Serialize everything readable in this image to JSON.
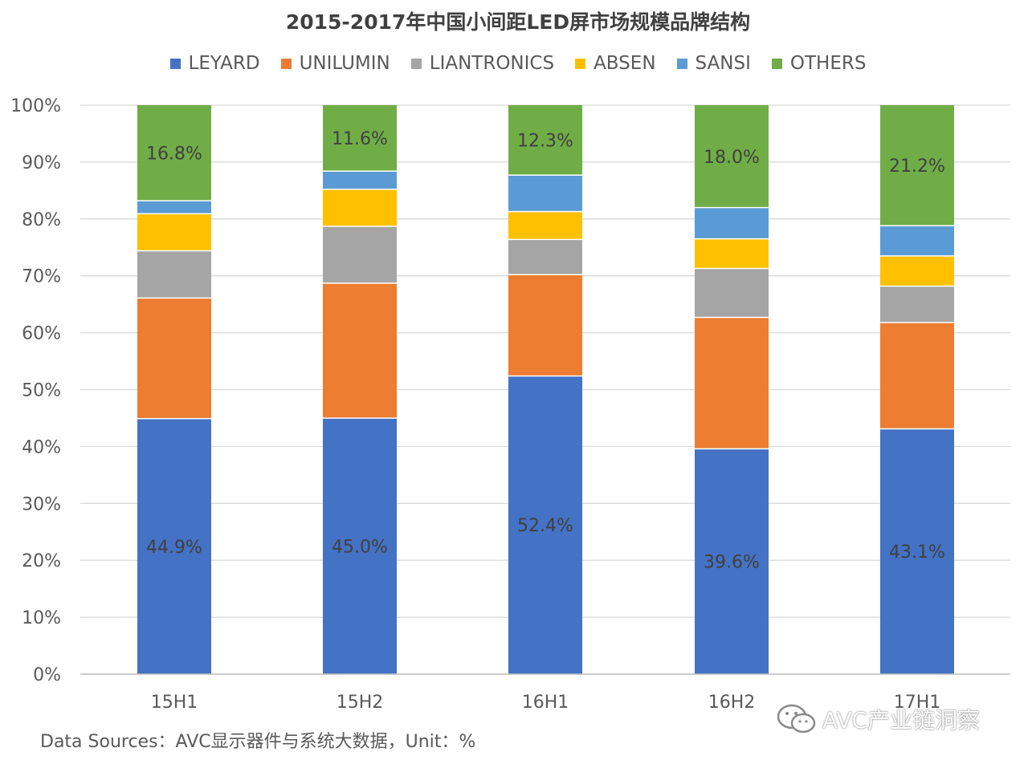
{
  "chart_data": {
    "type": "bar",
    "stacked": true,
    "title": "2015-2017年中国小间距LED屏市场规模品牌结构",
    "categories": [
      "15H1",
      "15H2",
      "16H1",
      "16H2",
      "17H1"
    ],
    "series": [
      {
        "name": "LEYARD",
        "color": "#4472C4",
        "values": [
          44.9,
          45.0,
          52.4,
          39.6,
          43.1
        ]
      },
      {
        "name": "UNILUMIN",
        "color": "#ED7D31",
        "values": [
          21.2,
          23.7,
          17.8,
          23.1,
          18.7
        ]
      },
      {
        "name": "LIANTRONICS",
        "color": "#A5A5A5",
        "values": [
          8.3,
          10.0,
          6.2,
          8.6,
          6.4
        ]
      },
      {
        "name": "ABSEN",
        "color": "#FFC000",
        "values": [
          6.5,
          6.5,
          4.9,
          5.2,
          5.3
        ]
      },
      {
        "name": "SANSI",
        "color": "#5B9BD5",
        "values": [
          2.3,
          3.2,
          6.4,
          5.5,
          5.3
        ]
      },
      {
        "name": "OTHERS",
        "color": "#70AD47",
        "values": [
          16.8,
          11.6,
          12.3,
          18.0,
          21.2
        ]
      }
    ],
    "data_labels": {
      "LEYARD": [
        "44.9%",
        "45.0%",
        "52.4%",
        "39.6%",
        "43.1%"
      ],
      "OTHERS": [
        "16.8%",
        "11.6%",
        "12.3%",
        "18.0%",
        "21.2%"
      ]
    },
    "ylim": [
      0,
      100
    ],
    "yticks": [
      "0%",
      "10%",
      "20%",
      "30%",
      "40%",
      "50%",
      "60%",
      "70%",
      "80%",
      "90%",
      "100%"
    ],
    "grid": true,
    "legend_position": "top"
  },
  "source_note": "Data Sources：AVC显示器件与系统大数据，Unit：%",
  "watermark": "AVC产业链洞察",
  "watermark_icon": "wechat-icon"
}
